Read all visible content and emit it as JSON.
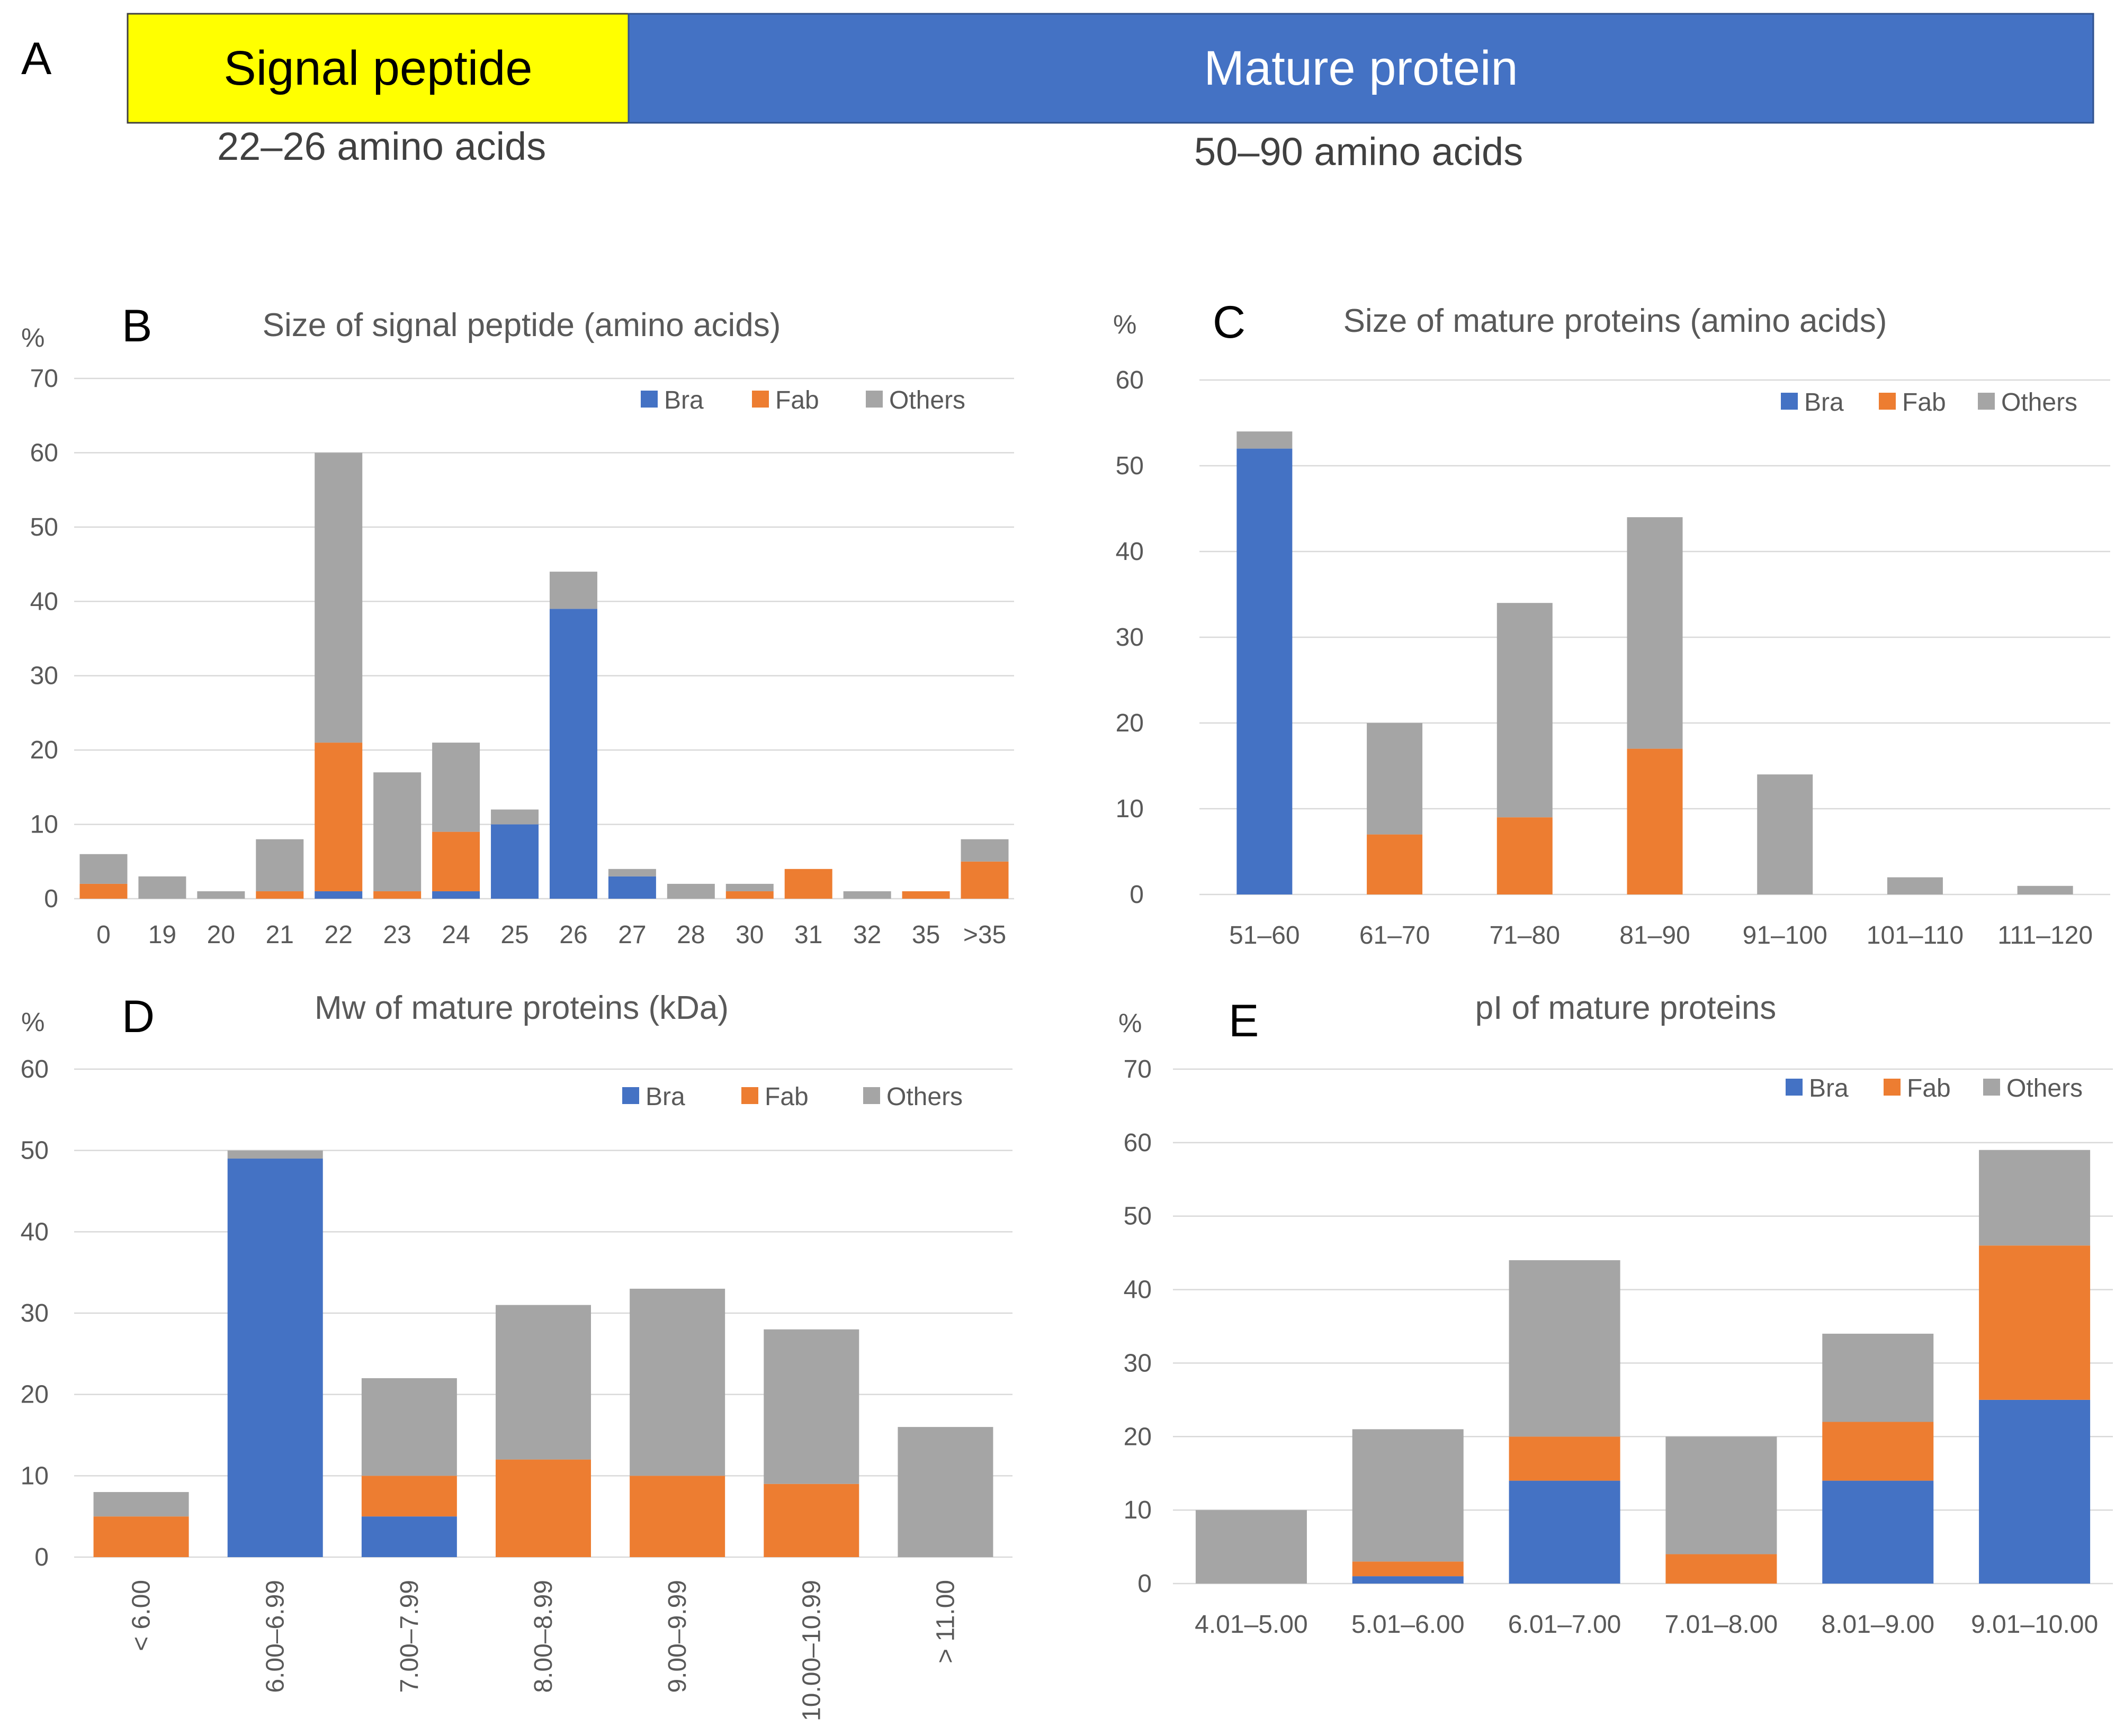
{
  "panel_a": {
    "letter": "A",
    "signal_label": "Signal peptide",
    "mature_label": "Mature protein",
    "signal_range": "22–26 amino acids",
    "mature_range": "50–90 amino acids",
    "signal_color": "#FFFF00",
    "mature_color": "#4472C4"
  },
  "colors": {
    "Bra": "#4472C4",
    "Fab": "#ED7D31",
    "Others": "#A5A5A5"
  },
  "chart_data": [
    {
      "id": "B",
      "letter": "B",
      "type": "bar",
      "stacked": true,
      "title": "Size of signal peptide (amino acids)",
      "ylabel": "%",
      "ylim": [
        0,
        70
      ],
      "yticks": [
        "0",
        "10",
        "20",
        "30",
        "40",
        "50",
        "60",
        "70"
      ],
      "categories": [
        "0",
        "19",
        "20",
        "21",
        "22",
        "23",
        "24",
        "25",
        "26",
        "27",
        "28",
        "30",
        "31",
        "32",
        "35",
        ">35"
      ],
      "legend": [
        "Bra",
        "Fab",
        "Others"
      ],
      "legend_position": "top-right",
      "series": [
        {
          "name": "Bra",
          "values": [
            0,
            0,
            0,
            0,
            1,
            0,
            1,
            10,
            39,
            3,
            0,
            0,
            0,
            0,
            0,
            0
          ]
        },
        {
          "name": "Fab",
          "values": [
            2,
            0,
            0,
            1,
            20,
            1,
            8,
            0,
            0,
            0,
            0,
            1,
            4,
            0,
            1,
            5
          ]
        },
        {
          "name": "Others",
          "values": [
            4,
            3,
            1,
            7,
            39,
            16,
            12,
            2,
            5,
            1,
            2,
            1,
            0,
            1,
            0,
            3
          ]
        }
      ]
    },
    {
      "id": "C",
      "letter": "C",
      "type": "bar",
      "stacked": true,
      "title": "Size of mature proteins (amino acids)",
      "ylabel": "%",
      "ylim": [
        0,
        60
      ],
      "yticks": [
        "0",
        "10",
        "20",
        "30",
        "40",
        "50",
        "60"
      ],
      "categories": [
        "51–60",
        "61–70",
        "71–80",
        "81–90",
        "91–100",
        "101–110",
        "111–120"
      ],
      "legend": [
        "Bra",
        "Fab",
        "Others"
      ],
      "legend_position": "top-right",
      "series": [
        {
          "name": "Bra",
          "values": [
            52,
            0,
            0,
            0,
            0,
            0,
            0
          ]
        },
        {
          "name": "Fab",
          "values": [
            0,
            7,
            9,
            17,
            0,
            0,
            0
          ]
        },
        {
          "name": "Others",
          "values": [
            2,
            13,
            25,
            27,
            14,
            2,
            1
          ]
        }
      ]
    },
    {
      "id": "D",
      "letter": "D",
      "type": "bar",
      "stacked": true,
      "title": "Mw of mature proteins (kDa)",
      "ylabel": "%",
      "ylim": [
        0,
        60
      ],
      "yticks": [
        "0",
        "10",
        "20",
        "30",
        "40",
        "50",
        "60"
      ],
      "categories": [
        "< 6.00",
        "6.00–6.99",
        "7.00–7.99",
        "8.00–8.99",
        "9.00–9.99",
        "10.00–10.99",
        "> 11.00"
      ],
      "rotated_labels": true,
      "legend": [
        "Bra",
        "Fab",
        "Others"
      ],
      "legend_position": "top-right",
      "series": [
        {
          "name": "Bra",
          "values": [
            0,
            49,
            5,
            0,
            0,
            0,
            0
          ]
        },
        {
          "name": "Fab",
          "values": [
            5,
            0,
            5,
            12,
            10,
            9,
            0
          ]
        },
        {
          "name": "Others",
          "values": [
            3,
            1,
            12,
            19,
            23,
            19,
            16
          ]
        }
      ]
    },
    {
      "id": "E",
      "letter": "E",
      "type": "bar",
      "stacked": true,
      "title": "pI of mature proteins",
      "ylabel": "%",
      "ylim": [
        0,
        70
      ],
      "yticks": [
        "0",
        "10",
        "20",
        "30",
        "40",
        "50",
        "60",
        "70"
      ],
      "categories": [
        "4.01–5.00",
        "5.01–6.00",
        "6.01–7.00",
        "7.01–8.00",
        "8.01–9.00",
        "9.01–10.00"
      ],
      "legend": [
        "Bra",
        "Fab",
        "Others"
      ],
      "legend_position": "top-right",
      "series": [
        {
          "name": "Bra",
          "values": [
            0,
            1,
            14,
            0,
            14,
            25
          ]
        },
        {
          "name": "Fab",
          "values": [
            0,
            2,
            6,
            4,
            8,
            21
          ]
        },
        {
          "name": "Others",
          "values": [
            10,
            18,
            24,
            16,
            12,
            13
          ]
        }
      ]
    }
  ]
}
